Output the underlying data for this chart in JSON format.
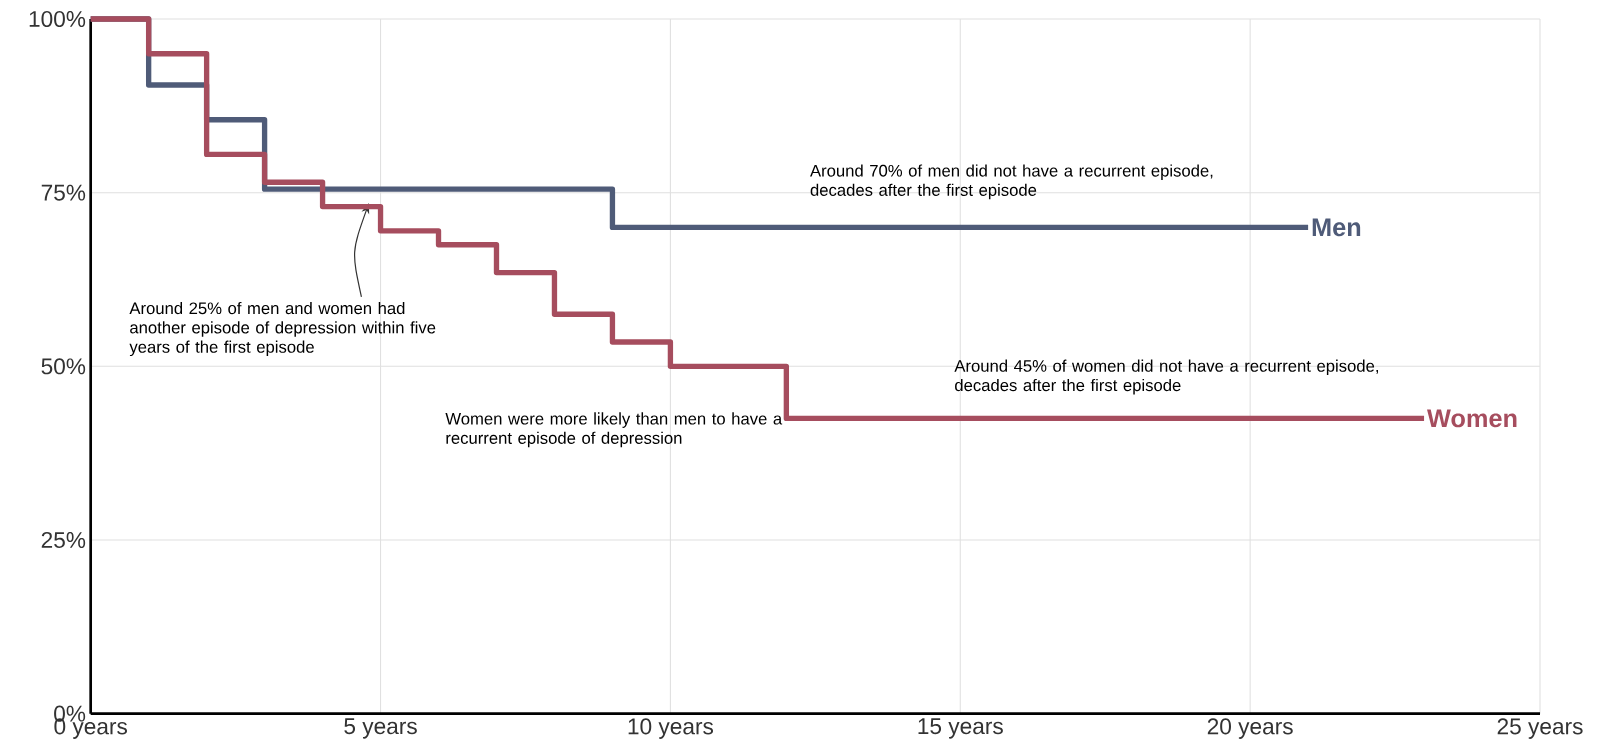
{
  "chart_data": {
    "type": "step",
    "xlim": [
      0,
      25
    ],
    "ylim": [
      0,
      100
    ],
    "xticks": [
      {
        "value": 0,
        "label": "0 years"
      },
      {
        "value": 5,
        "label": "5 years"
      },
      {
        "value": 10,
        "label": "10 years"
      },
      {
        "value": 15,
        "label": "15 years"
      },
      {
        "value": 20,
        "label": "20 years"
      },
      {
        "value": 25,
        "label": "25 years"
      }
    ],
    "yticks": [
      {
        "value": 0,
        "label": "0%"
      },
      {
        "value": 25,
        "label": "25%"
      },
      {
        "value": 50,
        "label": "50%"
      },
      {
        "value": 75,
        "label": "75%"
      },
      {
        "value": 100,
        "label": "100%"
      }
    ],
    "grid": true,
    "marker": "none",
    "line_style": "solid",
    "series": [
      {
        "name": "Men",
        "color": "#4f5b78",
        "x": [
          0,
          1,
          2,
          3,
          9,
          21
        ],
        "values": [
          100,
          90.5,
          85.5,
          75.5,
          70,
          70
        ]
      },
      {
        "name": "Women",
        "color": "#a64d5e",
        "x": [
          0,
          1,
          2,
          3,
          4,
          5,
          6,
          7,
          8,
          9,
          10,
          12,
          23
        ],
        "values": [
          100,
          95,
          80.5,
          76.5,
          73,
          69.5,
          67.5,
          63.5,
          57.5,
          53.5,
          50,
          42.5,
          42.5
        ]
      }
    ],
    "annotations": [
      {
        "text": "Around 25% of men and women had another episode of depression within five years of the first episode",
        "x": 4.8,
        "y": 73.5
      },
      "Around 70% of men did not have a recurrent episode, decades after the first episode",
      "Around 45% of women did not have a recurrent episode, decades after the first episode",
      "Women were more likely than men to have a recurrent episode of depression"
    ]
  }
}
